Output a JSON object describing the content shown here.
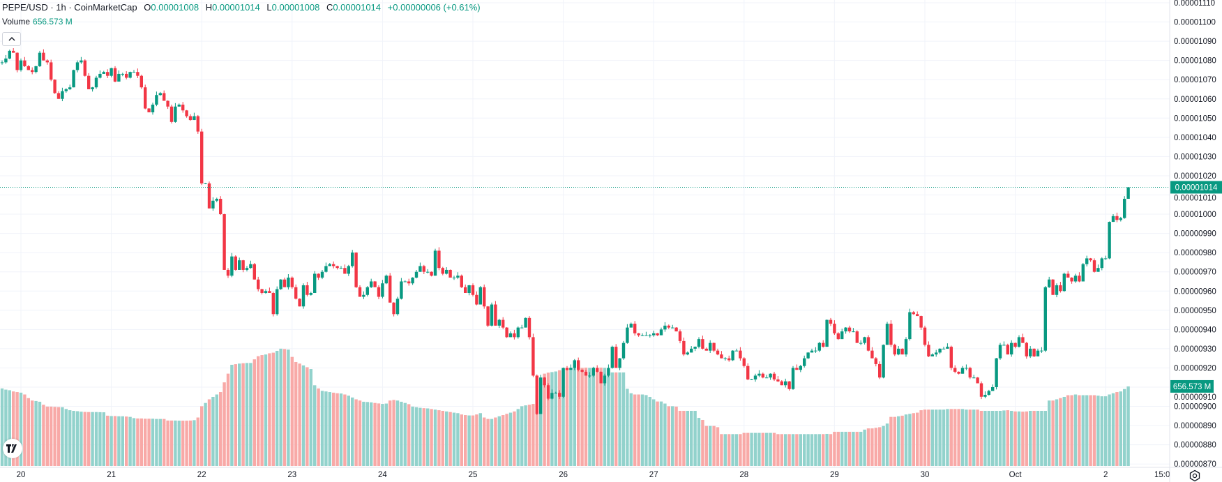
{
  "legend": {
    "title": "PEPE/USD · 1h · CoinMarketCap",
    "ohlc": [
      {
        "key": "O",
        "value": "0.00001008"
      },
      {
        "key": "H",
        "value": "0.00001014"
      },
      {
        "key": "L",
        "value": "0.00001008"
      },
      {
        "key": "C",
        "value": "0.00001014"
      }
    ],
    "change": "+0.00000006 (+0.61%)",
    "volume_label": "Volume",
    "volume_value": "656.573 M"
  },
  "colors": {
    "up": "#089981",
    "down": "#f23645",
    "up_volume": "#92d2cc",
    "down_volume": "#f8a9a7",
    "grid": "#f0f3fa",
    "text": "#131722"
  },
  "icons": {
    "collapse": "chevron-up-icon",
    "logo": "tradingview-logo",
    "settings": "settings-icon"
  },
  "logo_text": "TV",
  "chart_data": {
    "type": "candlestick",
    "symbol": "PEPE/USD",
    "interval": "1h",
    "ylim": [
      8.7e-06,
      1.11e-05
    ],
    "price_ticks": [
      "0.00001110",
      "0.00001100",
      "0.00001090",
      "0.00001080",
      "0.00001070",
      "0.00001060",
      "0.00001050",
      "0.00001040",
      "0.00001030",
      "0.00001020",
      "0.00001010",
      "0.00001000",
      "0.00000990",
      "0.00000980",
      "0.00000970",
      "0.00000960",
      "0.00000950",
      "0.00000940",
      "0.00000930",
      "0.00000920",
      "0.00000910",
      "0.00000900",
      "0.00000890",
      "0.00000880",
      "0.00000870"
    ],
    "time_ticks": [
      "20",
      "21",
      "22",
      "23",
      "24",
      "25",
      "26",
      "27",
      "28",
      "29",
      "30",
      "Oct",
      "2",
      "15:0"
    ],
    "last_price": "0.00001014",
    "last_volume": "656.573 M",
    "grid": true,
    "close": [
      1079,
      1079,
      1081,
      1085,
      1084,
      1075,
      1080,
      1077,
      1075,
      1074,
      1077,
      1084,
      1080,
      1079,
      1070,
      1063,
      1060,
      1064,
      1065,
      1066,
      1075,
      1079,
      1080,
      1072,
      1065,
      1066,
      1071,
      1073,
      1074,
      1072,
      1076,
      1069,
      1073,
      1073,
      1071,
      1074,
      1074,
      1072,
      1066,
      1055,
      1053,
      1057,
      1062,
      1063,
      1059,
      1056,
      1048,
      1056,
      1057,
      1054,
      1051,
      1049,
      1051,
      1043,
      1016,
      1016,
      1003,
      1007,
      1008,
      1000,
      971,
      968,
      978,
      971,
      976,
      971,
      972,
      974,
      966,
      961,
      959,
      960,
      959,
      948,
      961,
      966,
      962,
      967,
      962,
      956,
      952,
      963,
      958,
      959,
      969,
      967,
      970,
      973,
      974,
      973,
      972,
      972,
      969,
      973,
      980,
      962,
      957,
      958,
      962,
      965,
      962,
      957,
      964,
      968,
      954,
      948,
      956,
      965,
      965,
      964,
      967,
      970,
      973,
      970,
      970,
      968,
      981,
      972,
      969,
      971,
      967,
      967,
      968,
      962,
      959,
      963,
      958,
      953,
      962,
      952,
      942,
      953,
      942,
      945,
      941,
      936,
      938,
      936,
      941,
      941,
      946,
      936,
      916,
      896,
      915,
      911,
      904,
      907,
      907,
      905,
      920,
      919,
      920,
      924,
      919,
      918,
      916,
      916,
      920,
      918,
      912,
      916,
      920,
      931,
      920,
      925,
      933,
      941,
      943,
      938,
      937,
      937,
      937,
      937,
      938,
      937,
      940,
      942,
      941,
      941,
      939,
      934,
      927,
      928,
      930,
      931,
      935,
      930,
      929,
      933,
      929,
      927,
      925,
      925,
      924,
      929,
      929,
      925,
      921,
      914,
      914,
      916,
      917,
      915,
      915,
      917,
      914,
      913,
      911,
      913,
      909,
      920,
      919,
      921,
      925,
      928,
      929,
      929,
      933,
      931,
      945,
      943,
      938,
      935,
      939,
      941,
      939,
      939,
      933,
      933,
      936,
      929,
      925,
      922,
      915,
      932,
      943,
      932,
      927,
      930,
      927,
      935,
      949,
      948,
      947,
      941,
      932,
      926,
      927,
      928,
      930,
      930,
      931,
      920,
      918,
      917,
      920,
      920,
      915,
      915,
      912,
      905,
      906,
      908,
      910,
      925,
      932,
      932,
      927,
      933,
      931,
      936,
      933,
      926,
      930,
      926,
      929,
      929,
      962,
      966,
      958,
      963,
      960,
      969,
      967,
      965,
      968,
      965,
      974,
      977,
      976,
      970,
      972,
      977,
      977,
      996,
      999,
      997,
      998,
      1008,
      1014
    ],
    "close_unit": "0.00000001 USD",
    "volume_unit": "M",
    "volume": [
      657,
      640,
      630,
      625,
      615,
      610,
      605,
      590,
      560,
      540,
      536,
      530,
      505,
      490,
      490,
      488,
      486,
      485,
      470,
      460,
      455,
      452,
      448,
      446,
      445,
      445,
      445,
      444,
      443,
      415,
      412,
      412,
      410,
      410,
      408,
      405,
      395,
      392,
      392,
      390,
      390,
      390,
      388,
      388,
      388,
      375,
      375,
      375,
      374,
      374,
      374,
      375,
      378,
      400,
      493,
      520,
      550,
      570,
      590,
      610,
      690,
      762,
      835,
      840,
      845,
      848,
      850,
      850,
      880,
      906,
      915,
      920,
      930,
      935,
      950,
      968,
      965,
      960,
      900,
      858,
      845,
      830,
      815,
      800,
      666,
      640,
      620,
      615,
      610,
      605,
      600,
      598,
      590,
      580,
      565,
      550,
      540,
      530,
      528,
      525,
      520,
      516,
      512,
      515,
      540,
      545,
      540,
      530,
      520,
      510,
      490,
      485,
      480,
      477,
      475,
      470,
      465,
      460,
      455,
      450,
      445,
      440,
      436,
      425,
      420,
      417,
      417,
      425,
      436,
      400,
      388,
      388,
      400,
      410,
      420,
      430,
      440,
      450,
      470,
      493,
      500,
      505,
      512,
      590,
      680,
      762,
      770,
      775,
      780,
      790,
      800,
      805,
      810,
      810,
      812,
      810,
      812,
      810,
      812,
      810,
      812,
      810,
      800,
      772,
      772,
      772,
      772,
      637,
      600,
      590,
      590,
      590,
      585,
      570,
      550,
      532,
      532,
      515,
      493,
      493,
      490,
      455,
      455,
      455,
      455,
      455,
      397,
      380,
      330,
      330,
      330,
      320,
      263,
      263,
      263,
      263,
      263,
      263,
      273,
      273,
      273,
      273,
      273,
      273,
      273,
      273,
      273,
      263,
      263,
      263,
      263,
      263,
      263,
      263,
      263,
      263,
      263,
      263,
      263,
      263,
      265,
      263,
      282,
      282,
      282,
      282,
      282,
      282,
      282,
      282,
      300,
      310,
      310,
      315,
      320,
      330,
      350,
      405,
      405,
      410,
      415,
      425,
      430,
      436,
      440,
      460,
      465,
      465,
      465,
      465,
      465,
      465,
      470,
      470,
      470,
      470,
      470,
      465,
      465,
      465,
      465,
      455,
      455,
      455,
      455,
      455,
      455,
      458,
      460,
      455,
      450,
      450,
      448,
      450,
      455,
      455,
      455,
      455,
      455,
      540,
      540,
      550,
      560,
      570,
      584,
      584,
      590,
      584,
      584,
      584,
      584,
      584,
      580,
      575,
      575,
      590,
      600,
      610,
      615,
      635,
      656.573
    ]
  }
}
